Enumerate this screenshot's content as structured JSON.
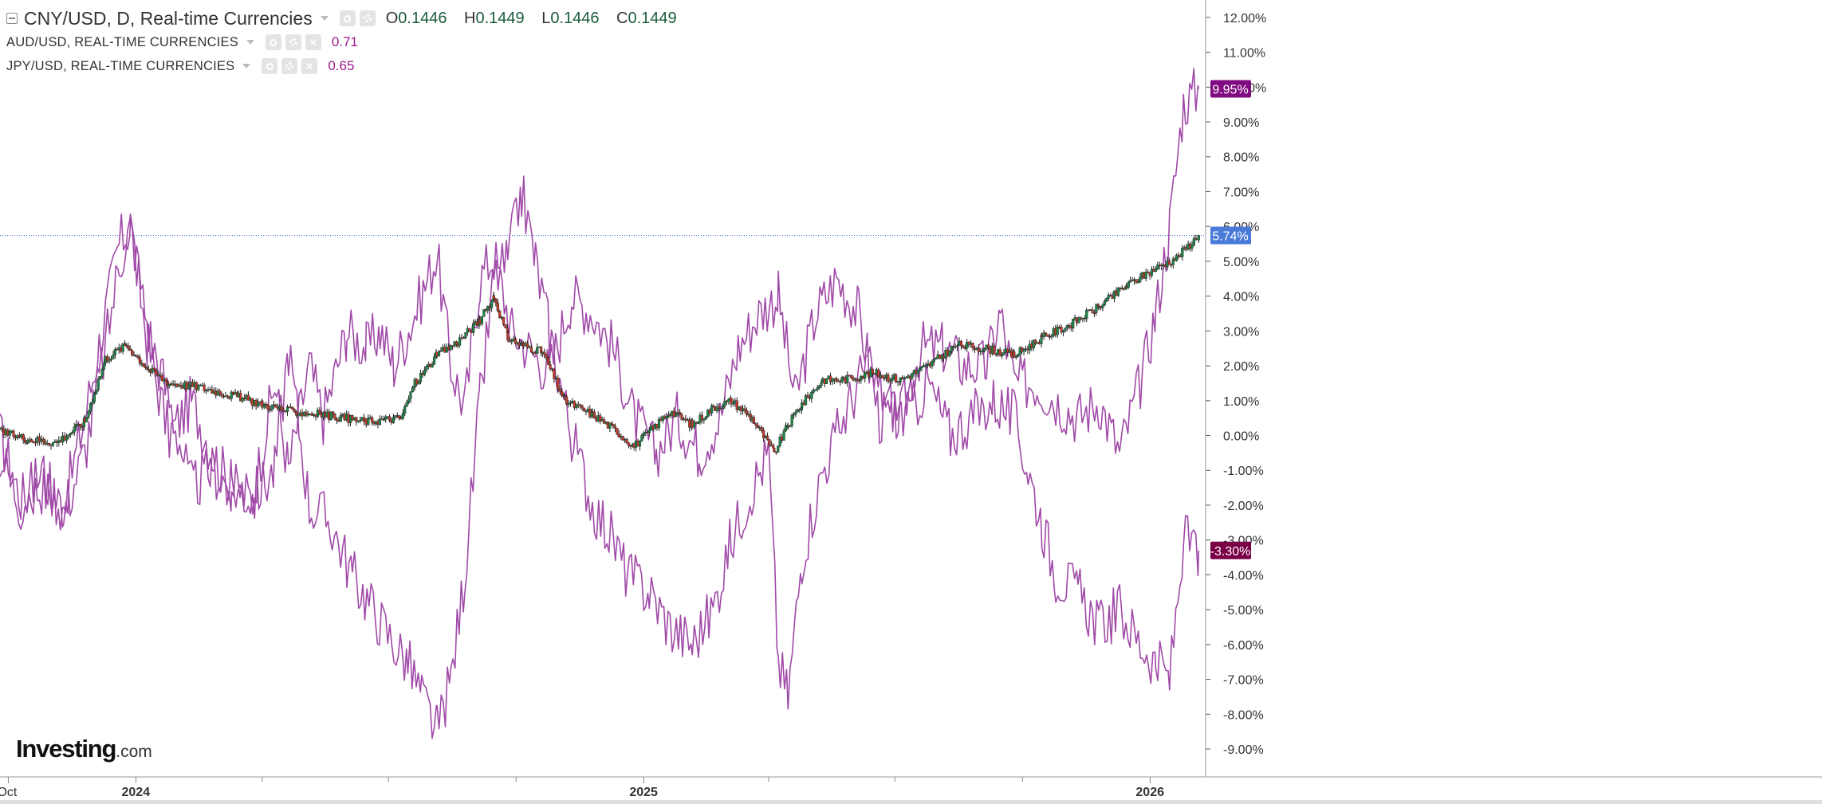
{
  "legend": {
    "main": {
      "title": "CNY/USD, D, Real-time Currencies",
      "open_label": "O",
      "open": "0.1446",
      "high_label": "H",
      "high": "0.1449",
      "low_label": "L",
      "low": "0.1446",
      "close_label": "C",
      "close": "0.1449"
    },
    "sub": [
      {
        "title": "AUD/USD, REAL-TIME CURRENCIES",
        "value": "0.71"
      },
      {
        "title": "JPY/USD, REAL-TIME CURRENCIES",
        "value": "0.65"
      }
    ]
  },
  "logo": {
    "brand": "Investing",
    "tld": ".com"
  },
  "colors": {
    "up": "#1e8449",
    "down": "#c0392b",
    "overlay": "#a04aa8",
    "badge_overlay_high": "#800a80",
    "badge_overlay_low": "#7a0045",
    "badge_main": "#4a7ad8",
    "axis": "#555555",
    "grid": "#e6e6e6"
  },
  "icons": [
    "collapse-icon",
    "caret-down-icon",
    "eye-icon",
    "gear-icon",
    "close-icon"
  ],
  "chart_data": {
    "type": "line",
    "title": "CNY/USD, D, Real-time Currencies",
    "xlabel": "",
    "ylabel": "",
    "y_axis_side": "right",
    "y_unit": "%",
    "ylim": [
      -9.8,
      12.5
    ],
    "xlim": [
      "2023-09-25",
      "2026-02-10"
    ],
    "y_ticks": [
      "12.00%",
      "11.00%",
      "10.00%",
      "9.00%",
      "8.00%",
      "7.00%",
      "6.00%",
      "5.00%",
      "4.00%",
      "3.00%",
      "2.00%",
      "1.00%",
      "0.00%",
      "-1.00%",
      "-2.00%",
      "-3.00%",
      "-4.00%",
      "-5.00%",
      "-6.00%",
      "-7.00%",
      "-8.00%",
      "-9.00%"
    ],
    "y_tick_values": [
      12,
      11,
      10,
      9,
      8,
      7,
      6,
      5,
      4,
      3,
      2,
      1,
      0,
      -1,
      -2,
      -3,
      -4,
      -5,
      -6,
      -7,
      -8,
      -9
    ],
    "x_ticks": [
      {
        "label": "Oct",
        "x": "2023-10-01",
        "bold": false
      },
      {
        "label": "2024",
        "x": "2024-01-01",
        "bold": true
      },
      {
        "label": "2025",
        "x": "2025-01-01",
        "bold": true
      },
      {
        "label": "2026",
        "x": "2026-01-01",
        "bold": true
      }
    ],
    "x_minor_ticks": [
      "2024-04-01",
      "2024-07-01",
      "2024-10-01",
      "2025-04-01",
      "2025-07-01",
      "2025-10-01"
    ],
    "price_line": 5.74,
    "last_value_badges": [
      {
        "label": "9.95%",
        "value": 9.95,
        "series": "AUD/USD"
      },
      {
        "label": "5.74%",
        "value": 5.74,
        "series": "CNY/USD"
      },
      {
        "label": "-3.30%",
        "value": -3.3,
        "series": "JPY/USD"
      }
    ],
    "series": [
      {
        "name": "CNY/USD",
        "kind": "candlestick",
        "x": [
          "2023-09-25",
          "2023-10-15",
          "2023-11-05",
          "2023-11-25",
          "2023-12-10",
          "2023-12-25",
          "2024-01-10",
          "2024-01-25",
          "2024-02-15",
          "2024-03-15",
          "2024-04-01",
          "2024-04-20",
          "2024-05-15",
          "2024-06-15",
          "2024-07-10",
          "2024-07-20",
          "2024-08-05",
          "2024-08-20",
          "2024-09-05",
          "2024-09-15",
          "2024-09-25",
          "2024-10-05",
          "2024-10-20",
          "2024-11-05",
          "2024-11-25",
          "2024-12-10",
          "2024-12-25",
          "2025-01-05",
          "2025-01-20",
          "2025-02-05",
          "2025-02-20",
          "2025-03-05",
          "2025-03-20",
          "2025-04-05",
          "2025-04-15",
          "2025-04-25",
          "2025-05-10",
          "2025-05-25",
          "2025-06-15",
          "2025-07-05",
          "2025-07-25",
          "2025-08-15",
          "2025-09-05",
          "2025-09-25",
          "2025-10-15",
          "2025-11-05",
          "2025-11-25",
          "2025-12-15",
          "2026-01-05",
          "2026-01-20",
          "2026-02-05"
        ],
        "values": [
          0.1,
          -0.1,
          -0.2,
          0.4,
          2.2,
          2.6,
          1.9,
          1.5,
          1.4,
          1.1,
          0.9,
          0.7,
          0.6,
          0.4,
          0.5,
          1.5,
          2.3,
          2.7,
          3.3,
          4.0,
          2.8,
          2.6,
          2.4,
          1.0,
          0.6,
          0.2,
          -0.3,
          0.1,
          0.7,
          0.3,
          0.8,
          1.0,
          0.5,
          -0.5,
          0.3,
          0.9,
          1.6,
          1.6,
          1.8,
          1.6,
          2.0,
          2.6,
          2.5,
          2.3,
          2.8,
          3.2,
          3.7,
          4.3,
          4.8,
          5.1,
          5.74
        ]
      },
      {
        "name": "AUD/USD",
        "kind": "line",
        "x": [
          "2023-09-25",
          "2023-10-10",
          "2023-10-25",
          "2023-11-10",
          "2023-11-25",
          "2023-12-10",
          "2023-12-20",
          "2023-12-28",
          "2024-01-10",
          "2024-01-25",
          "2024-02-10",
          "2024-02-25",
          "2024-03-10",
          "2024-03-25",
          "2024-04-10",
          "2024-04-20",
          "2024-05-05",
          "2024-05-15",
          "2024-06-01",
          "2024-06-15",
          "2024-06-25",
          "2024-07-05",
          "2024-07-20",
          "2024-08-05",
          "2024-08-15",
          "2024-08-25",
          "2024-09-05",
          "2024-09-15",
          "2024-09-28",
          "2024-10-10",
          "2024-10-25",
          "2024-11-10",
          "2024-11-25",
          "2024-12-10",
          "2024-12-25",
          "2025-01-10",
          "2025-01-25",
          "2025-02-10",
          "2025-02-25",
          "2025-03-10",
          "2025-03-25",
          "2025-04-08",
          "2025-04-20",
          "2025-05-05",
          "2025-05-20",
          "2025-06-05",
          "2025-06-20",
          "2025-07-05",
          "2025-07-20",
          "2025-08-05",
          "2025-08-20",
          "2025-09-05",
          "2025-09-15",
          "2025-09-25",
          "2025-10-10",
          "2025-10-25",
          "2025-11-10",
          "2025-11-25",
          "2025-12-10",
          "2025-12-25",
          "2026-01-05",
          "2026-01-15",
          "2026-01-25",
          "2026-02-05"
        ],
        "values": [
          0.0,
          -1.8,
          -1.5,
          -2.0,
          0.5,
          3.5,
          5.5,
          6.0,
          2.5,
          0.0,
          1.0,
          -0.5,
          -1.5,
          -1.8,
          1.5,
          -1.0,
          2.0,
          0.5,
          3.0,
          2.5,
          3.0,
          2.0,
          3.5,
          5.2,
          2.0,
          0.8,
          4.5,
          5.2,
          3.0,
          2.5,
          1.8,
          4.0,
          3.5,
          2.5,
          0.5,
          -0.5,
          0.5,
          -0.5,
          0.5,
          2.5,
          3.5,
          4.0,
          1.0,
          3.5,
          4.5,
          3.5,
          0.5,
          0.5,
          2.5,
          2.5,
          2.0,
          2.0,
          3.5,
          1.5,
          1.5,
          1.0,
          0.5,
          1.0,
          -0.5,
          1.5,
          3.5,
          6.0,
          9.5,
          9.95
        ]
      },
      {
        "name": "JPY/USD",
        "kind": "line",
        "x": [
          "2023-09-25",
          "2023-10-10",
          "2023-10-25",
          "2023-11-10",
          "2023-11-25",
          "2023-12-10",
          "2023-12-20",
          "2023-12-28",
          "2024-01-10",
          "2024-01-25",
          "2024-02-10",
          "2024-02-25",
          "2024-03-10",
          "2024-03-25",
          "2024-04-10",
          "2024-04-20",
          "2024-05-05",
          "2024-05-20",
          "2024-06-05",
          "2024-06-20",
          "2024-07-05",
          "2024-07-15",
          "2024-07-25",
          "2024-08-05",
          "2024-08-15",
          "2024-08-25",
          "2024-09-05",
          "2024-09-15",
          "2024-09-25",
          "2024-10-05",
          "2024-10-15",
          "2024-10-25",
          "2024-11-10",
          "2024-11-25",
          "2024-12-10",
          "2024-12-20",
          "2025-01-05",
          "2025-01-20",
          "2025-02-05",
          "2025-02-20",
          "2025-03-05",
          "2025-03-20",
          "2025-04-01",
          "2025-04-08",
          "2025-04-15",
          "2025-04-25",
          "2025-05-10",
          "2025-05-25",
          "2025-06-10",
          "2025-06-25",
          "2025-07-10",
          "2025-07-25",
          "2025-08-10",
          "2025-08-25",
          "2025-09-10",
          "2025-09-25",
          "2025-10-05",
          "2025-10-15",
          "2025-10-25",
          "2025-11-10",
          "2025-11-25",
          "2025-12-10",
          "2025-12-25",
          "2026-01-05",
          "2026-01-15",
          "2026-01-25",
          "2026-02-05"
        ],
        "values": [
          -0.5,
          -2.0,
          -1.0,
          -2.2,
          -0.5,
          2.5,
          5.0,
          6.0,
          3.0,
          1.0,
          -1.5,
          -1.0,
          -1.5,
          -1.8,
          -1.0,
          2.5,
          -2.0,
          -2.5,
          -4.0,
          -5.0,
          -6.0,
          -6.5,
          -7.5,
          -8.5,
          -7.0,
          -4.0,
          1.0,
          4.5,
          5.0,
          7.0,
          5.0,
          3.0,
          0.0,
          -2.0,
          -3.0,
          -4.0,
          -4.5,
          -5.5,
          -6.0,
          -5.0,
          -3.0,
          -1.5,
          -0.5,
          -6.5,
          -7.5,
          -3.5,
          -1.0,
          0.5,
          2.0,
          1.0,
          0.5,
          1.5,
          0.0,
          0.5,
          1.0,
          0.5,
          -1.0,
          -2.5,
          -4.0,
          -4.5,
          -5.5,
          -5.0,
          -6.0,
          -6.5,
          -7.0,
          -3.0,
          -3.3
        ]
      }
    ]
  }
}
